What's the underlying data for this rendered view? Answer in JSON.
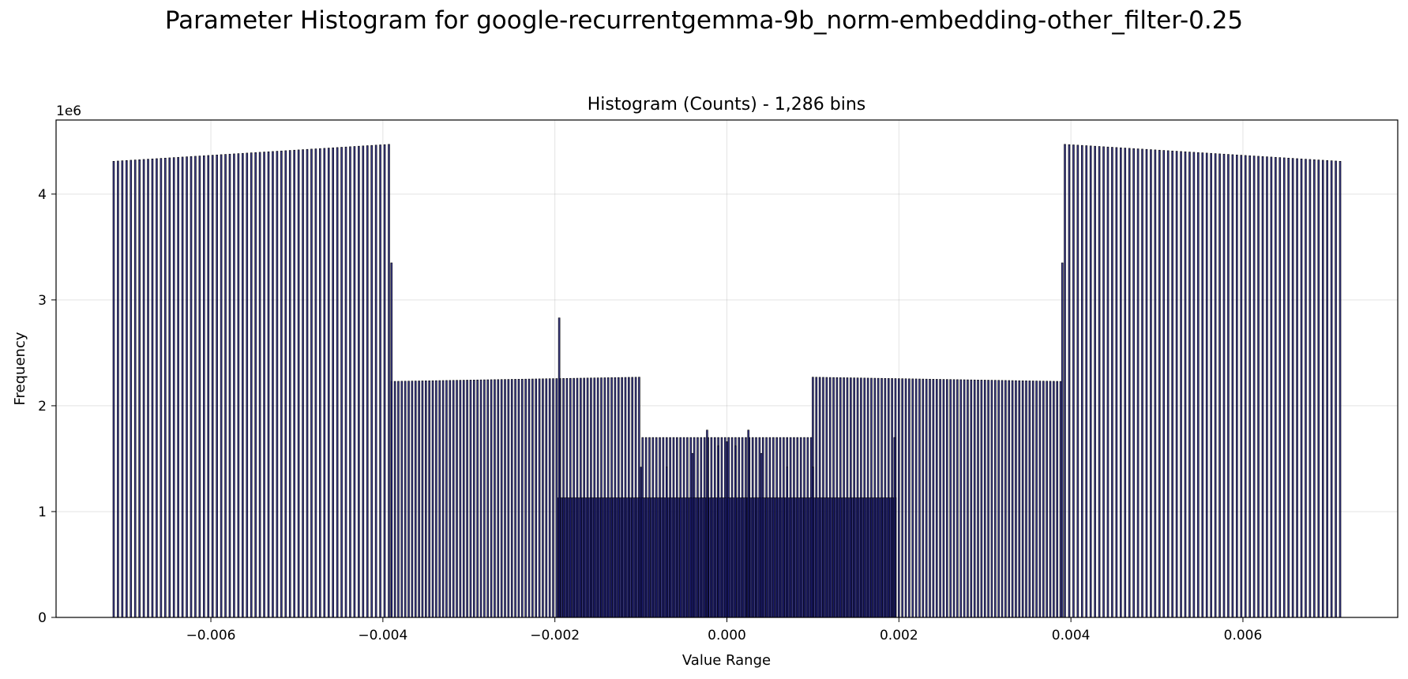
{
  "suptitle": "Parameter Histogram for google-recurrentgemma-9b_norm-embedding-other_filter-0.25",
  "chart_data": {
    "type": "bar",
    "title": "Histogram (Counts) - 1,286 bins",
    "xlabel": "Value Range",
    "ylabel": "Frequency",
    "y_multiplier_label": "1e6",
    "xlim": [
      -0.0078,
      0.0078
    ],
    "ylim": [
      0,
      4.7
    ],
    "xticks": [
      -0.006,
      -0.004,
      -0.002,
      0.0,
      0.002,
      0.004,
      0.006
    ],
    "xtick_labels": [
      "−0.006",
      "−0.004",
      "−0.002",
      "0.000",
      "0.002",
      "0.004",
      "0.006"
    ],
    "yticks": [
      0,
      1,
      2,
      3,
      4
    ],
    "ytick_labels": [
      "0",
      "1",
      "2",
      "3",
      "4"
    ],
    "grid": true,
    "bar_color": "#1a1a78",
    "edge_color": "#000000",
    "segments": [
      {
        "x_start": -0.00713,
        "x_end": -0.00393,
        "y_start": 4.31,
        "y_end": 4.47,
        "step": 5e-05
      },
      {
        "x_start": -0.0039,
        "x_end": -0.001,
        "y_start": 2.23,
        "y_end": 2.27,
        "step": 4e-05
      },
      {
        "x_start": -0.00098,
        "x_end": 0.00098,
        "y_start": 1.7,
        "y_end": 1.7,
        "step": 4e-05
      },
      {
        "x_start": 0.001,
        "x_end": 0.0039,
        "y_start": 2.27,
        "y_end": 2.23,
        "step": 4e-05
      },
      {
        "x_start": 0.00393,
        "x_end": 0.00713,
        "y_start": 4.47,
        "y_end": 4.31,
        "step": 5e-05
      },
      {
        "x_start": -0.00196,
        "x_end": 0.00196,
        "y_start": 1.13,
        "y_end": 1.13,
        "step": 2e-05
      }
    ],
    "extra_bars": [
      {
        "x": -0.0039,
        "y": 3.35
      },
      {
        "x": 0.0039,
        "y": 3.35
      },
      {
        "x": -0.00195,
        "y": 2.83
      },
      {
        "x": -0.00023,
        "y": 1.77
      },
      {
        "x": 0.00025,
        "y": 1.77
      },
      {
        "x": 0.00195,
        "y": 1.7
      },
      {
        "x": -0.001,
        "y": 1.42
      },
      {
        "x": -0.0007,
        "y": 1.42
      },
      {
        "x": 0.0007,
        "y": 1.42
      },
      {
        "x": 0.001,
        "y": 1.42
      },
      {
        "x": -0.0004,
        "y": 1.55
      },
      {
        "x": 0.0004,
        "y": 1.55
      },
      {
        "x": -0.0001,
        "y": 1.62
      },
      {
        "x": 0.0,
        "y": 1.66
      },
      {
        "x": 0.0001,
        "y": 1.62
      }
    ]
  }
}
